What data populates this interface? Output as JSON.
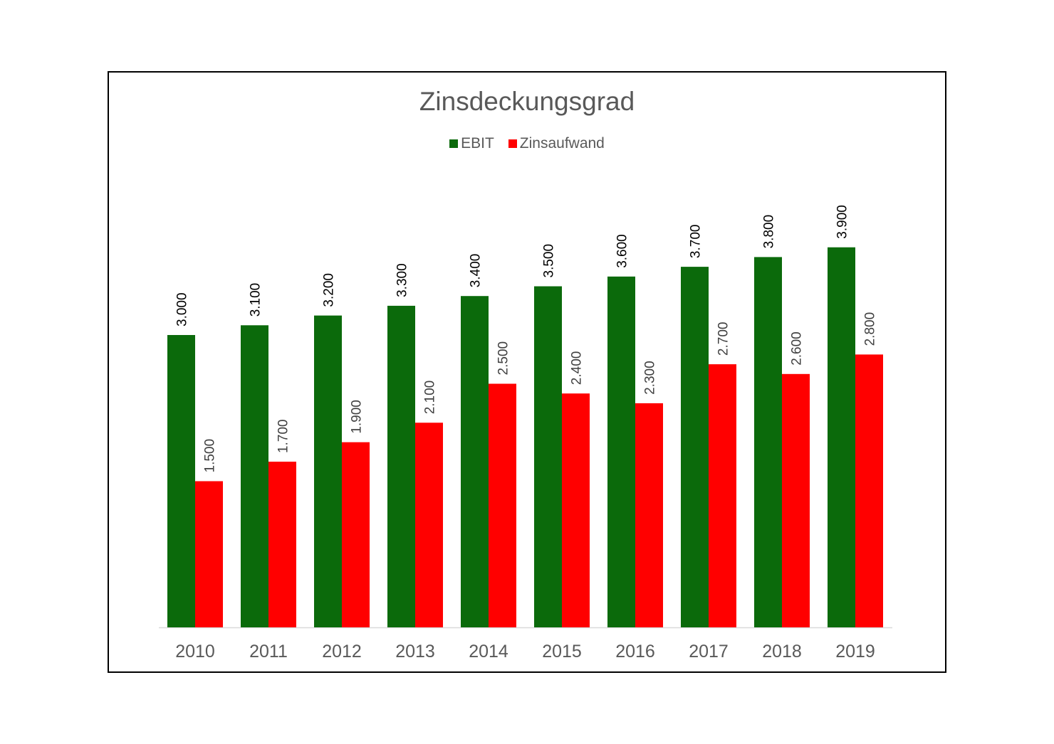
{
  "chart_data": {
    "type": "bar",
    "title": "Zinsdeckungsgrad",
    "categories": [
      "2010",
      "2011",
      "2012",
      "2013",
      "2014",
      "2015",
      "2016",
      "2017",
      "2018",
      "2019"
    ],
    "series": [
      {
        "name": "EBIT",
        "color": "#0b6a0b",
        "values": [
          3000,
          3100,
          3200,
          3300,
          3400,
          3500,
          3600,
          3700,
          3800,
          3900
        ],
        "labels": [
          "3.000",
          "3.100",
          "3.200",
          "3.300",
          "3.400",
          "3.500",
          "3.600",
          "3.700",
          "3.800",
          "3.900"
        ]
      },
      {
        "name": "Zinsaufwand",
        "color": "#ff0000",
        "values": [
          1500,
          1700,
          1900,
          2100,
          2500,
          2400,
          2300,
          2700,
          2600,
          2800
        ],
        "labels": [
          "1.500",
          "1.700",
          "1.900",
          "2.100",
          "2.500",
          "2.400",
          "2.300",
          "2.700",
          "2.600",
          "2.800"
        ]
      }
    ],
    "ylim": [
      0,
      5000
    ],
    "grid": false,
    "legend_position": "top",
    "xlabel": "",
    "ylabel": ""
  }
}
